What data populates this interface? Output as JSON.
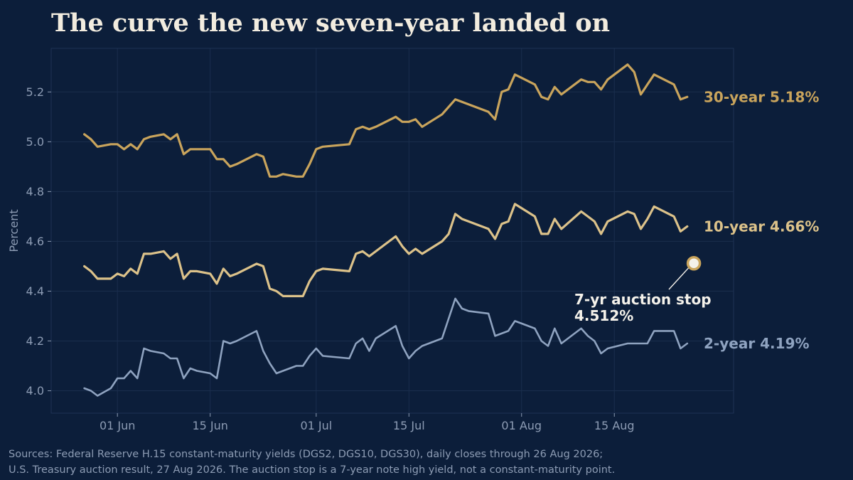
{
  "title": "The curve the new seven-year landed on",
  "source": {
    "line1": "Sources: Federal Reserve H.15 constant-maturity yields (DGS2, DGS10, DGS30), daily closes through 26 Aug 2026;",
    "line2": "U.S. Treasury auction result, 27 Aug 2026. The auction stop is a 7-year note high yield, not a constant-maturity point."
  },
  "colors": {
    "background": "#0c1e3a",
    "grid": "#1a2e4d",
    "axis_text": "#8d9cb4",
    "y30": "#c9a45c",
    "y10": "#dcc28a",
    "y2": "#8fa3c0",
    "annotation": "#f4f1ea"
  },
  "chart_data": {
    "type": "line",
    "ylabel": "Percent",
    "ylim": [
      3.91,
      5.375
    ],
    "xlim": [
      "2026-05-22",
      "2026-09-02"
    ],
    "yticks": [
      4.0,
      4.2,
      4.4,
      4.6,
      4.8,
      5.0,
      5.2
    ],
    "ytick_labels": [
      "4.0",
      "4.2",
      "4.4",
      "4.6",
      "4.8",
      "5.0",
      "5.2"
    ],
    "xticks": [
      {
        "date": "2026-06-01",
        "label": "01 Jun"
      },
      {
        "date": "2026-06-15",
        "label": "15 Jun"
      },
      {
        "date": "2026-07-01",
        "label": "01 Jul"
      },
      {
        "date": "2026-07-15",
        "label": "15 Jul"
      },
      {
        "date": "2026-08-01",
        "label": "01 Aug"
      },
      {
        "date": "2026-08-15",
        "label": "15 Aug"
      }
    ],
    "grid": true,
    "x": [
      "2026-05-27",
      "2026-05-28",
      "2026-05-29",
      "2026-05-31",
      "2026-06-01",
      "2026-06-02",
      "2026-06-03",
      "2026-06-04",
      "2026-06-05",
      "2026-06-06",
      "2026-06-08",
      "2026-06-09",
      "2026-06-10",
      "2026-06-11",
      "2026-06-12",
      "2026-06-13",
      "2026-06-15",
      "2026-06-16",
      "2026-06-17",
      "2026-06-18",
      "2026-06-19",
      "2026-06-22",
      "2026-06-23",
      "2026-06-24",
      "2026-06-25",
      "2026-06-26",
      "2026-06-28",
      "2026-06-29",
      "2026-06-30",
      "2026-07-01",
      "2026-07-02",
      "2026-07-06",
      "2026-07-07",
      "2026-07-08",
      "2026-07-09",
      "2026-07-10",
      "2026-07-13",
      "2026-07-14",
      "2026-07-15",
      "2026-07-16",
      "2026-07-17",
      "2026-07-20",
      "2026-07-21",
      "2026-07-22",
      "2026-07-23",
      "2026-07-24",
      "2026-07-27",
      "2026-07-28",
      "2026-07-29",
      "2026-07-30",
      "2026-07-31",
      "2026-08-03",
      "2026-08-04",
      "2026-08-05",
      "2026-08-06",
      "2026-08-07",
      "2026-08-10",
      "2026-08-11",
      "2026-08-12",
      "2026-08-13",
      "2026-08-14",
      "2026-08-17",
      "2026-08-18",
      "2026-08-19",
      "2026-08-20",
      "2026-08-21",
      "2026-08-24",
      "2026-08-25",
      "2026-08-26"
    ],
    "series": [
      {
        "name": "30-year",
        "key": "y30",
        "label": "30-year  5.18%",
        "values": [
          5.03,
          5.01,
          4.98,
          4.99,
          4.99,
          4.97,
          4.99,
          4.97,
          5.01,
          5.02,
          5.03,
          5.01,
          5.03,
          4.95,
          4.97,
          4.97,
          4.97,
          4.93,
          4.93,
          4.9,
          4.91,
          4.95,
          4.94,
          4.86,
          4.86,
          4.87,
          4.86,
          4.86,
          4.91,
          4.97,
          4.98,
          4.99,
          5.05,
          5.06,
          5.05,
          5.06,
          5.1,
          5.08,
          5.08,
          5.09,
          5.06,
          5.11,
          5.14,
          5.17,
          5.16,
          5.15,
          5.12,
          5.09,
          5.2,
          5.21,
          5.27,
          5.23,
          5.18,
          5.17,
          5.22,
          5.19,
          5.25,
          5.24,
          5.24,
          5.21,
          5.25,
          5.31,
          5.28,
          5.19,
          5.23,
          5.27,
          5.23,
          5.17,
          5.18
        ]
      },
      {
        "name": "10-year",
        "key": "y10",
        "label": "10-year  4.66%",
        "values": [
          4.5,
          4.48,
          4.45,
          4.45,
          4.47,
          4.46,
          4.49,
          4.47,
          4.55,
          4.55,
          4.56,
          4.53,
          4.55,
          4.45,
          4.48,
          4.48,
          4.47,
          4.43,
          4.49,
          4.46,
          4.47,
          4.51,
          4.5,
          4.41,
          4.4,
          4.38,
          4.38,
          4.38,
          4.44,
          4.48,
          4.49,
          4.48,
          4.55,
          4.56,
          4.54,
          4.56,
          4.62,
          4.58,
          4.55,
          4.57,
          4.55,
          4.6,
          4.63,
          4.71,
          4.69,
          4.68,
          4.65,
          4.61,
          4.67,
          4.68,
          4.75,
          4.7,
          4.63,
          4.63,
          4.69,
          4.65,
          4.72,
          4.7,
          4.68,
          4.63,
          4.68,
          4.72,
          4.71,
          4.65,
          4.69,
          4.74,
          4.7,
          4.64,
          4.66
        ]
      },
      {
        "name": "2-year",
        "key": "y2",
        "label": "2-year  4.19%",
        "values": [
          4.01,
          4.0,
          3.98,
          4.01,
          4.05,
          4.05,
          4.08,
          4.05,
          4.17,
          4.16,
          4.15,
          4.13,
          4.13,
          4.05,
          4.09,
          4.08,
          4.07,
          4.05,
          4.2,
          4.19,
          4.2,
          4.24,
          4.16,
          4.11,
          4.07,
          4.08,
          4.1,
          4.1,
          4.14,
          4.17,
          4.14,
          4.13,
          4.19,
          4.21,
          4.16,
          4.21,
          4.26,
          4.18,
          4.13,
          4.16,
          4.18,
          4.21,
          4.29,
          4.37,
          4.33,
          4.32,
          4.31,
          4.22,
          4.23,
          4.24,
          4.28,
          4.25,
          4.2,
          4.18,
          4.25,
          4.19,
          4.25,
          4.22,
          4.2,
          4.15,
          4.17,
          4.19,
          4.19,
          4.19,
          4.19,
          4.24,
          4.24,
          4.17,
          4.19
        ]
      }
    ],
    "annotations": [
      {
        "date": "2026-08-27",
        "value": 4.512,
        "line1": "7-yr auction stop",
        "line2": "4.512%"
      }
    ]
  }
}
